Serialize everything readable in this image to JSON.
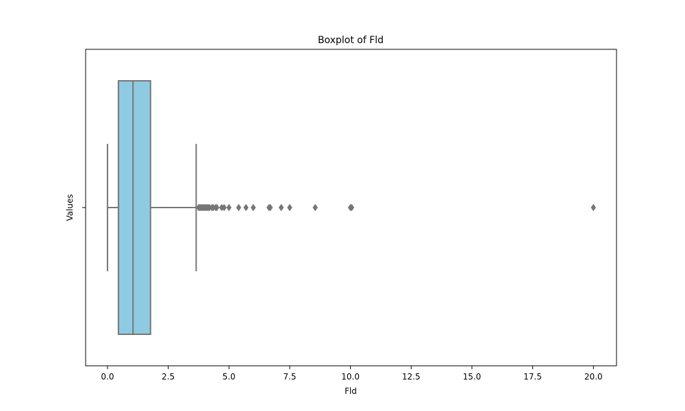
{
  "chart_data": {
    "type": "boxplot",
    "title": "Boxplot of Fld",
    "xlabel": "Fld",
    "ylabel": "Values",
    "xlim": [
      -0.9,
      20.95
    ],
    "x_ticks": [
      0.0,
      2.5,
      5.0,
      7.5,
      10.0,
      12.5,
      15.0,
      17.5,
      20.0
    ],
    "x_tick_labels": [
      "0.0",
      "2.5",
      "5.0",
      "7.5",
      "10.0",
      "12.5",
      "15.0",
      "17.5",
      "20.0"
    ],
    "box": {
      "whisker_low": 0.0,
      "q1": 0.45,
      "median": 1.05,
      "q3": 1.77,
      "whisker_high": 3.65
    },
    "outliers": [
      3.75,
      3.8,
      3.85,
      3.9,
      3.95,
      4.0,
      4.05,
      4.1,
      4.15,
      4.2,
      4.3,
      4.35,
      4.45,
      4.5,
      4.7,
      4.8,
      5.0,
      5.4,
      5.7,
      6.0,
      6.65,
      6.7,
      7.15,
      7.5,
      8.55,
      10.0,
      10.05,
      20.0
    ],
    "colors": {
      "box_fill": "#8fcae3",
      "line": "#767676"
    }
  }
}
